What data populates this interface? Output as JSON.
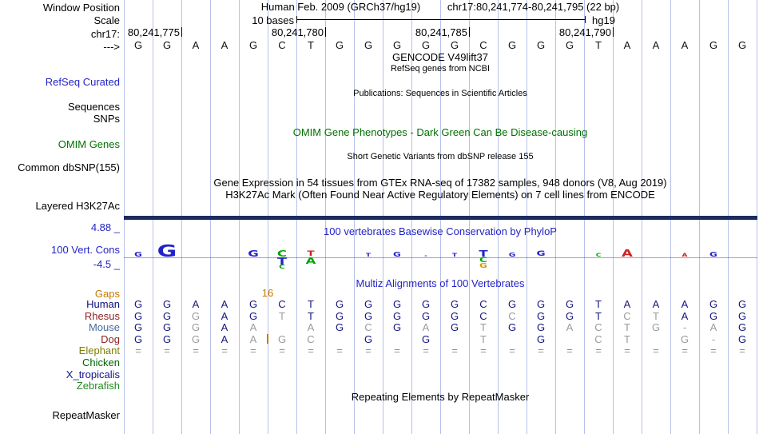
{
  "colors": {
    "grid_line": "#b7c1ea",
    "blue": "#2323c8",
    "green": "#007200",
    "orange": "#c87800",
    "h3k27ac_bar": "#1d2b5f",
    "base_navy": "#151580",
    "base_muted": "#9a9aa2",
    "base_equals": "#8f8f8f",
    "sequence_black": "#111111",
    "logo_blue": "#2222cc",
    "logo_green": "#00a400",
    "logo_red": "#cc2222",
    "logo_orange": "#dd9900"
  },
  "header": {
    "window_position_label": "Window Position",
    "assembly_title": "Human Feb. 2009 (GRCh37/hg19)",
    "position_range": "chr17:80,241,774-80,241,795 (22 bp)",
    "scale_label": "Scale",
    "scale_text": "10 bases",
    "assembly_short": "hg19",
    "chrom_label": "chr17:",
    "strand_arrow": "--->",
    "ruler_labels": [
      "80,241,775",
      "80,241,780",
      "80,241,785",
      "80,241,790"
    ],
    "sequence": [
      "G",
      "G",
      "A",
      "A",
      "G",
      "C",
      "T",
      "G",
      "G",
      "G",
      "G",
      "G",
      "C",
      "G",
      "G",
      "G",
      "T",
      "A",
      "A",
      "A",
      "G",
      "G"
    ]
  },
  "tracks": {
    "gencode_title": "GENCODE V49lift37",
    "refseq_subtitle": "RefSeq genes from NCBI",
    "refseq_label": "RefSeq Curated",
    "publications_title": "Publications: Sequences in Scientific Articles",
    "sequences_label": "Sequences",
    "snps_label": "SNPs",
    "omim_title": "OMIM Gene Phenotypes - Dark Green Can Be Disease-causing",
    "omim_label": "OMIM Genes",
    "dbsnp_title": "Short Genetic Variants from dbSNP release 155",
    "dbsnp_label": "Common dbSNP(155)",
    "gtex_title": "Gene Expression in 54 tissues from GTEx RNA-seq of 17382 samples, 948 donors (V8, Aug 2019)",
    "h3k27ac_title": "H3K27Ac Mark (Often Found Near Active Regulatory Elements) on 7 cell lines from ENCODE",
    "h3k27ac_label": "Layered H3K27Ac",
    "phylop_title": "100 vertebrates Basewise Conservation by PhyloP",
    "phylop_label": "100 Vert. Cons",
    "phylop_max": "4.88 _",
    "phylop_min": "-4.5 _",
    "multiz_title": "Multiz Alignments of 100 Vertebrates",
    "repeat_title": "Repeating Elements by RepeatMasker",
    "repeat_label": "RepeatMasker"
  },
  "alignment": {
    "gaps_label": "Gaps",
    "gap_count": "16",
    "gap_col": 6,
    "insert_species": "Dog",
    "species": [
      {
        "name": "Human",
        "color": "#0c0c78",
        "bases": [
          "G",
          "G",
          "A",
          "A",
          "G",
          "C",
          "T",
          "G",
          "G",
          "G",
          "G",
          "G",
          "C",
          "G",
          "G",
          "G",
          "T",
          "A",
          "A",
          "A",
          "G",
          "G"
        ],
        "muted": []
      },
      {
        "name": "Rhesus",
        "color": "#8e2323",
        "bases": [
          "G",
          "G",
          "G",
          "A",
          "G",
          "T",
          "T",
          "G",
          "G",
          "G",
          "G",
          "G",
          "C",
          "C",
          "G",
          "G",
          "T",
          "C",
          "T",
          "A",
          "G",
          "G"
        ],
        "muted": [
          2,
          5,
          13,
          17,
          18
        ]
      },
      {
        "name": "Mouse",
        "color": "#4a6a9d",
        "bases": [
          "G",
          "G",
          "G",
          "A",
          "A",
          "",
          "A",
          "G",
          "C",
          "G",
          "A",
          "G",
          "T",
          "G",
          "G",
          "A",
          "C",
          "T",
          "G",
          "-",
          "A",
          "G"
        ],
        "muted": [
          2,
          4,
          6,
          8,
          10,
          12,
          15,
          16,
          17,
          18,
          20
        ]
      },
      {
        "name": "Dog",
        "color": "#8e2323",
        "bases": [
          "G",
          "G",
          "G",
          "A",
          "A",
          "G",
          "C",
          "",
          "G",
          "",
          "G",
          "",
          "T",
          "",
          "G",
          "",
          "C",
          "T",
          "",
          "G",
          "-",
          "G"
        ],
        "muted": [
          2,
          4,
          5,
          6,
          12,
          16,
          17,
          19
        ]
      },
      {
        "name": "Elephant",
        "color": "#808000",
        "bases": [
          "=",
          "=",
          "=",
          "=",
          "=",
          "=",
          "=",
          "=",
          "=",
          "=",
          "=",
          "=",
          "=",
          "=",
          "=",
          "=",
          "=",
          "=",
          "=",
          "=",
          "=",
          "="
        ],
        "muted": []
      },
      {
        "name": "Chicken",
        "color": "#006400",
        "bases": [],
        "muted": []
      },
      {
        "name": "X_tropicalis",
        "color": "#14148c",
        "bases": [],
        "muted": []
      },
      {
        "name": "Zebrafish",
        "color": "#228b22",
        "bases": [],
        "muted": []
      }
    ]
  },
  "phylop_logo": [
    {
      "col": 1,
      "above": [
        {
          "ch": "G",
          "color": "blue",
          "h": 6
        }
      ],
      "below": []
    },
    {
      "col": 2,
      "above": [
        {
          "ch": "G",
          "color": "blue",
          "h": 15
        }
      ],
      "below": []
    },
    {
      "col": 5,
      "above": [
        {
          "ch": "G",
          "color": "blue",
          "h": 8
        }
      ],
      "below": []
    },
    {
      "col": 6,
      "above": [
        {
          "ch": "C",
          "color": "green",
          "h": 8
        }
      ],
      "below": [
        {
          "ch": "T",
          "color": "blue",
          "h": 9
        },
        {
          "ch": "C",
          "color": "green",
          "h": 5
        }
      ]
    },
    {
      "col": 7,
      "above": [
        {
          "ch": "T",
          "color": "red",
          "h": 7
        }
      ],
      "below": [
        {
          "ch": "A",
          "color": "green",
          "h": 8
        }
      ]
    },
    {
      "col": 9,
      "above": [
        {
          "ch": "T",
          "color": "blue",
          "h": 4
        }
      ],
      "below": []
    },
    {
      "col": 10,
      "above": [
        {
          "ch": "G",
          "color": "blue",
          "h": 6
        }
      ],
      "below": []
    },
    {
      "col": 11,
      "above": [
        {
          "ch": "-",
          "color": "blue",
          "h": 3
        }
      ],
      "below": []
    },
    {
      "col": 12,
      "above": [
        {
          "ch": "T",
          "color": "blue",
          "h": 4
        }
      ],
      "below": []
    },
    {
      "col": 13,
      "above": [
        {
          "ch": "T",
          "color": "blue",
          "h": 8
        }
      ],
      "below": [
        {
          "ch": "C",
          "color": "green",
          "h": 7
        },
        {
          "ch": "G",
          "color": "orange",
          "h": 6
        }
      ]
    },
    {
      "col": 14,
      "above": [
        {
          "ch": "G",
          "color": "blue",
          "h": 5
        }
      ],
      "below": []
    },
    {
      "col": 15,
      "above": [
        {
          "ch": "G",
          "color": "blue",
          "h": 7
        }
      ],
      "below": []
    },
    {
      "col": 17,
      "above": [
        {
          "ch": "C",
          "color": "green",
          "h": 4
        }
      ],
      "below": []
    },
    {
      "col": 18,
      "above": [
        {
          "ch": "A",
          "color": "red",
          "h": 9
        }
      ],
      "below": []
    },
    {
      "col": 20,
      "above": [
        {
          "ch": "A",
          "color": "red",
          "h": 4
        }
      ],
      "below": []
    },
    {
      "col": 21,
      "above": [
        {
          "ch": "G",
          "color": "blue",
          "h": 6
        }
      ],
      "below": []
    }
  ]
}
